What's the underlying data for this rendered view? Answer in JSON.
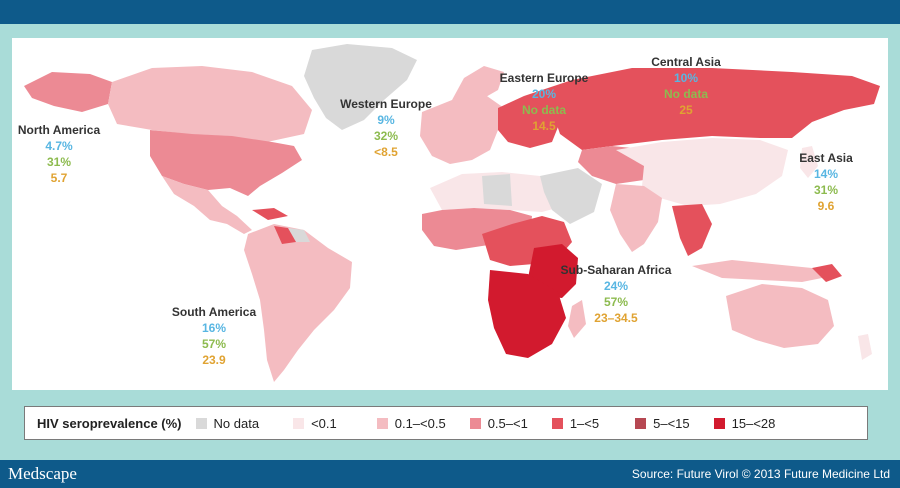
{
  "colors": {
    "banner": "#0e5a8a",
    "frame": "#a9dcd8",
    "pct_blue": "#58b6e2",
    "pct_green": "#8dbb4f",
    "val_orange": "#e0a332",
    "legend": {
      "no_data": "#d9d9d9",
      "lt_0_1": "#f9e6e8",
      "r_0_1_0_5": "#f4bcc1",
      "r_0_5_1": "#ec8a94",
      "r_1_5": "#e4515c",
      "r_5_15": "#b64852",
      "r_15_28": "#d21a2e"
    }
  },
  "regions": [
    {
      "name": "North America",
      "v1": "4.7%",
      "v2": "31%",
      "v3": "5.7"
    },
    {
      "name": "Western Europe",
      "v1": "9%",
      "v2": "32%",
      "v3": "<8.5"
    },
    {
      "name": "Eastern Europe",
      "v1": "20%",
      "v2": "No data",
      "v3": "14.5"
    },
    {
      "name": "Central Asia",
      "v1": "10%",
      "v2": "No data",
      "v3": "25"
    },
    {
      "name": "East Asia",
      "v1": "14%",
      "v2": "31%",
      "v3": "9.6"
    },
    {
      "name": "Sub-Saharan Africa",
      "v1": "24%",
      "v2": "57%",
      "v3": "23–34.5"
    },
    {
      "name": "South America",
      "v1": "16%",
      "v2": "57%",
      "v3": "23.9"
    }
  ],
  "legend": {
    "title": "HIV seroprevalence (%)",
    "items": [
      "No data",
      "<0.1",
      "0.1–<0.5",
      "0.5–<1",
      "1–<5",
      "5–<15",
      "15–<28"
    ]
  },
  "footer": {
    "brand": "Medscape",
    "source": "Source: Future Virol © 2013 Future Medicine Ltd"
  }
}
